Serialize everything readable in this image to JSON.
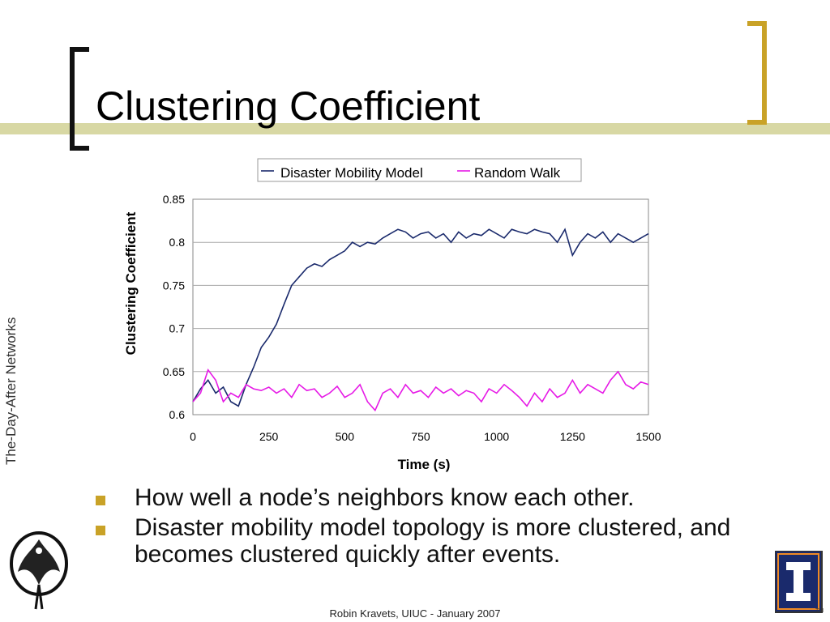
{
  "slide": {
    "title": "Clustering Coefficient",
    "side_label": "The-Day-After Networks",
    "bullets": [
      "How well a node’s neighbors know each other.",
      "Disaster mobility model topology is more clustered, and becomes clustered quickly after events."
    ],
    "footer": "Robin Kravets, UIUC - January 2007",
    "colors": {
      "accent": "#c9a227",
      "band": "#d8d8a4",
      "navy": "#1a2a6c",
      "magenta": "#e619e6"
    },
    "icons": {
      "left_logo": "phoenix-crest-icon",
      "right_logo": "illinois-block-i-icon"
    }
  },
  "chart_data": {
    "type": "line",
    "xlabel": "Time (s)",
    "ylabel": "Clustering Coefficient",
    "xlim": [
      0,
      1500
    ],
    "ylim": [
      0.6,
      0.85
    ],
    "xticks": [
      "0",
      "250",
      "500",
      "750",
      "1000",
      "1250",
      "1500"
    ],
    "yticks": [
      "0.6",
      "0.65",
      "0.7",
      "0.75",
      "0.8",
      "0.85"
    ],
    "grid": "horizontal",
    "legend_position": "top",
    "series": [
      {
        "name": "Disaster Mobility Model",
        "color": "#1a2a6c",
        "x": [
          0,
          25,
          50,
          75,
          100,
          125,
          150,
          175,
          200,
          225,
          250,
          275,
          300,
          325,
          350,
          375,
          400,
          425,
          450,
          475,
          500,
          525,
          550,
          575,
          600,
          625,
          650,
          675,
          700,
          725,
          750,
          775,
          800,
          825,
          850,
          875,
          900,
          925,
          950,
          975,
          1000,
          1025,
          1050,
          1075,
          1100,
          1125,
          1150,
          1175,
          1200,
          1225,
          1250,
          1275,
          1300,
          1325,
          1350,
          1375,
          1400,
          1425,
          1450,
          1475,
          1500
        ],
        "y": [
          0.615,
          0.63,
          0.64,
          0.625,
          0.632,
          0.615,
          0.61,
          0.635,
          0.655,
          0.678,
          0.69,
          0.705,
          0.728,
          0.75,
          0.76,
          0.77,
          0.775,
          0.772,
          0.78,
          0.785,
          0.79,
          0.8,
          0.795,
          0.8,
          0.798,
          0.805,
          0.81,
          0.815,
          0.812,
          0.805,
          0.81,
          0.812,
          0.805,
          0.81,
          0.8,
          0.812,
          0.805,
          0.81,
          0.808,
          0.815,
          0.81,
          0.805,
          0.815,
          0.812,
          0.81,
          0.815,
          0.812,
          0.81,
          0.8,
          0.815,
          0.785,
          0.8,
          0.81,
          0.805,
          0.812,
          0.8,
          0.81,
          0.805,
          0.8,
          0.805,
          0.81
        ]
      },
      {
        "name": "Random Walk",
        "color": "#e619e6",
        "x": [
          0,
          25,
          50,
          75,
          100,
          125,
          150,
          175,
          200,
          225,
          250,
          275,
          300,
          325,
          350,
          375,
          400,
          425,
          450,
          475,
          500,
          525,
          550,
          575,
          600,
          625,
          650,
          675,
          700,
          725,
          750,
          775,
          800,
          825,
          850,
          875,
          900,
          925,
          950,
          975,
          1000,
          1025,
          1050,
          1075,
          1100,
          1125,
          1150,
          1175,
          1200,
          1225,
          1250,
          1275,
          1300,
          1325,
          1350,
          1375,
          1400,
          1425,
          1450,
          1475,
          1500
        ],
        "y": [
          0.615,
          0.625,
          0.652,
          0.64,
          0.615,
          0.625,
          0.62,
          0.635,
          0.63,
          0.628,
          0.632,
          0.625,
          0.63,
          0.62,
          0.635,
          0.628,
          0.63,
          0.62,
          0.625,
          0.633,
          0.62,
          0.625,
          0.635,
          0.615,
          0.605,
          0.625,
          0.63,
          0.62,
          0.635,
          0.625,
          0.628,
          0.62,
          0.632,
          0.625,
          0.63,
          0.622,
          0.628,
          0.625,
          0.615,
          0.63,
          0.625,
          0.635,
          0.628,
          0.62,
          0.61,
          0.625,
          0.615,
          0.63,
          0.62,
          0.625,
          0.64,
          0.625,
          0.635,
          0.63,
          0.625,
          0.64,
          0.65,
          0.635,
          0.63,
          0.638,
          0.635
        ]
      }
    ]
  }
}
